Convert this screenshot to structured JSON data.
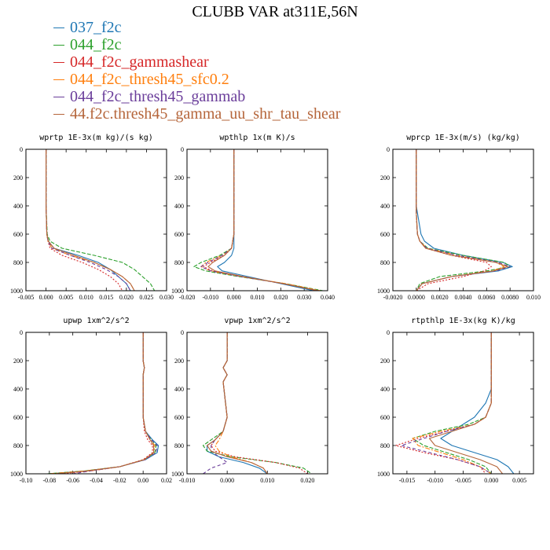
{
  "figure": {
    "title": "CLUBB VAR at311E,56N",
    "legend": [
      {
        "label": "037_f2c",
        "color": "#1f77b4"
      },
      {
        "label": "044_f2c",
        "color": "#2ca02c"
      },
      {
        "label": "044_f2c_gammashear",
        "color": "#d62728"
      },
      {
        "label": "044_f2c_thresh45_sfc0.2",
        "color": "#ff7f0e"
      },
      {
        "label": "044_f2c_thresh45_gammab",
        "color": "#6a3d9a"
      },
      {
        "label": "44.f2c.thresh45_gamma_uu_shr_tau_shear",
        "color": "#b5653a"
      }
    ]
  },
  "chart_data": [
    {
      "type": "line",
      "title": "wprtp  1E-3x(m kg)/(s kg)",
      "xlim": [
        -0.005,
        0.03
      ],
      "xticks": [
        "-0.005",
        "0.000",
        "0.005",
        "0.010",
        "0.015",
        "0.020",
        "0.025",
        "0.030"
      ],
      "ylim": [
        1000,
        0
      ],
      "yticks": [
        "0",
        "200",
        "400",
        "600",
        "800",
        "1000"
      ],
      "y": [
        0,
        200,
        400,
        600,
        650,
        700,
        750,
        800,
        850,
        900,
        950,
        1000
      ],
      "series": [
        {
          "name": "037_f2c",
          "x": [
            0,
            0,
            0,
            0.0002,
            0.0006,
            0.002,
            0.008,
            0.013,
            0.016,
            0.018,
            0.02,
            0.021
          ]
        },
        {
          "name": "044_f2c",
          "x": [
            0,
            0,
            0,
            0.0003,
            0.001,
            0.004,
            0.012,
            0.019,
            0.022,
            0.024,
            0.026,
            0.027
          ]
        },
        {
          "name": "044_f2c_gammashear",
          "x": [
            0,
            0,
            0,
            0.0002,
            0.0005,
            0.001,
            0.004,
            0.009,
            0.013,
            0.016,
            0.018,
            0.019
          ]
        },
        {
          "name": "044_f2c_thresh45_sfc0.2",
          "x": [
            0,
            0,
            0,
            0.0002,
            0.0005,
            0.0015,
            0.006,
            0.012,
            0.016,
            0.019,
            0.021,
            0.022
          ]
        },
        {
          "name": "044_f2c_thresh45_gammab",
          "x": [
            0,
            0,
            0,
            0.0002,
            0.0005,
            0.0015,
            0.006,
            0.011,
            0.015,
            0.018,
            0.02,
            0.021
          ]
        },
        {
          "name": "44.f2c.thresh45_gamma_uu_shr_tau_shear",
          "x": [
            0,
            0,
            0,
            0.0002,
            0.0006,
            0.002,
            0.007,
            0.012,
            0.016,
            0.019,
            0.021,
            0.022
          ]
        }
      ]
    },
    {
      "type": "line",
      "title": "wpthlp  1x(m K)/s",
      "xlim": [
        -0.02,
        0.04
      ],
      "xticks": [
        "-0.020",
        "-0.010",
        "0.000",
        "0.010",
        "0.020",
        "0.030",
        "0.040"
      ],
      "ylim": [
        1000,
        0
      ],
      "yticks": [
        "0",
        "200",
        "400",
        "600",
        "800",
        "1000"
      ],
      "y": [
        0,
        200,
        400,
        600,
        700,
        750,
        800,
        830,
        860,
        900,
        950,
        1000
      ],
      "series": [
        {
          "name": "037_f2c",
          "x": [
            0,
            0,
            0,
            0,
            0,
            -0.001,
            -0.004,
            -0.007,
            -0.005,
            0.006,
            0.02,
            0.034
          ]
        },
        {
          "name": "044_f2c",
          "x": [
            0,
            0,
            0,
            0,
            -0.001,
            -0.006,
            -0.014,
            -0.017,
            -0.012,
            0.002,
            0.022,
            0.038
          ]
        },
        {
          "name": "044_f2c_gammashear",
          "x": [
            0,
            0,
            0,
            0,
            -0.001,
            -0.004,
            -0.01,
            -0.013,
            -0.009,
            0.004,
            0.021,
            0.036
          ]
        },
        {
          "name": "044_f2c_thresh45_sfc0.2",
          "x": [
            0,
            0,
            0,
            0,
            -0.001,
            -0.005,
            -0.012,
            -0.014,
            -0.01,
            0.003,
            0.022,
            0.037
          ]
        },
        {
          "name": "044_f2c_thresh45_gammab",
          "x": [
            0,
            0,
            0,
            0,
            -0.001,
            -0.005,
            -0.011,
            -0.014,
            -0.01,
            0.003,
            0.021,
            0.036
          ]
        },
        {
          "name": "44.f2c.thresh45_gamma_uu_shr_tau_shear",
          "x": [
            0,
            0,
            0,
            0,
            -0.001,
            -0.004,
            -0.009,
            -0.011,
            -0.008,
            0.004,
            0.021,
            0.036
          ]
        }
      ]
    },
    {
      "type": "line",
      "title": "wprcp  1E-3x(m/s) (kg/kg)",
      "xlim": [
        -0.002,
        0.01
      ],
      "xticks": [
        "-0.0020",
        "0.0000",
        "0.0020",
        "0.0040",
        "0.0060",
        "0.0080",
        "0.010"
      ],
      "ylim": [
        1000,
        0
      ],
      "yticks": [
        "0",
        "200",
        "400",
        "600",
        "800",
        "1000"
      ],
      "y": [
        0,
        200,
        400,
        450,
        600,
        650,
        700,
        750,
        800,
        830,
        860,
        900,
        950,
        1000
      ],
      "series": [
        {
          "name": "037_f2c",
          "x": [
            0,
            0,
            0,
            0.0001,
            0.0004,
            0.0007,
            0.0015,
            0.004,
            0.0074,
            0.0082,
            0.007,
            0.003,
            0.0005,
            0
          ]
        },
        {
          "name": "044_f2c",
          "x": [
            0,
            0,
            0,
            0,
            0.0001,
            0.0003,
            0.001,
            0.004,
            0.0075,
            0.008,
            0.006,
            0.002,
            0.0003,
            0
          ]
        },
        {
          "name": "044_f2c_gammashear",
          "x": [
            0,
            0,
            0,
            0,
            0.0001,
            0.0003,
            0.0008,
            0.003,
            0.006,
            0.0064,
            0.0058,
            0.004,
            0.001,
            0
          ]
        },
        {
          "name": "044_f2c_thresh45_sfc0.2",
          "x": [
            0,
            0,
            0,
            0,
            0.0001,
            0.0003,
            0.0009,
            0.0035,
            0.0068,
            0.0075,
            0.0065,
            0.003,
            0.0005,
            0
          ]
        },
        {
          "name": "044_f2c_thresh45_gammab",
          "x": [
            0,
            0,
            0,
            0,
            0.0001,
            0.0003,
            0.0009,
            0.0035,
            0.007,
            0.008,
            0.0068,
            0.003,
            0.0005,
            0
          ]
        },
        {
          "name": "44.f2c.thresh45_gamma_uu_shr_tau_shear",
          "x": [
            0,
            0,
            0,
            0,
            0.0001,
            0.0003,
            0.0008,
            0.003,
            0.0068,
            0.0078,
            0.0066,
            0.003,
            0.0005,
            0
          ]
        }
      ]
    },
    {
      "type": "line",
      "title": "upwp  1xm^2/s^2",
      "xlim": [
        -0.1,
        0.02
      ],
      "xticks": [
        "-0.10",
        "-0.08",
        "-0.06",
        "-0.04",
        "-0.02",
        "0.00",
        "0.02"
      ],
      "ylim": [
        1000,
        0
      ],
      "yticks": [
        "0",
        "200",
        "400",
        "600",
        "800",
        "1000"
      ],
      "y": [
        0,
        200,
        250,
        300,
        600,
        700,
        760,
        800,
        850,
        900,
        950,
        980,
        1000
      ],
      "series": [
        {
          "name": "037_f2c",
          "x": [
            0,
            0,
            0.001,
            0,
            0,
            0.002,
            0.008,
            0.013,
            0.012,
            0.002,
            -0.02,
            -0.05,
            -0.08
          ]
        },
        {
          "name": "044_f2c",
          "x": [
            0,
            0,
            0.001,
            0,
            0,
            0.002,
            0.007,
            0.011,
            0.01,
            0.001,
            -0.02,
            -0.05,
            -0.082
          ]
        },
        {
          "name": "044_f2c_gammashear",
          "x": [
            0,
            0,
            0.001,
            0,
            0,
            0.001,
            0.004,
            0.008,
            0.008,
            0,
            -0.02,
            -0.045,
            -0.07
          ]
        },
        {
          "name": "044_f2c_thresh45_sfc0.2",
          "x": [
            0,
            0,
            0.001,
            0,
            0,
            0.002,
            0.006,
            0.01,
            0.009,
            0.001,
            -0.02,
            -0.05,
            -0.08
          ]
        },
        {
          "name": "044_f2c_thresh45_gammab",
          "x": [
            0,
            0,
            0.001,
            0,
            0,
            0.002,
            0.007,
            0.012,
            0.011,
            0.002,
            -0.02,
            -0.045,
            -0.06
          ]
        },
        {
          "name": "44.f2c.thresh45_gamma_uu_shr_tau_shear",
          "x": [
            0,
            0,
            0.001,
            0,
            0,
            0.002,
            0.006,
            0.009,
            0.009,
            0.001,
            -0.02,
            -0.048,
            -0.075
          ]
        }
      ]
    },
    {
      "type": "line",
      "title": "vpwp  1xm^2/s^2",
      "xlim": [
        -0.01,
        0.025
      ],
      "xticks": [
        "-0.010",
        "0.000",
        "0.010",
        "0.020"
      ],
      "ylim": [
        1000,
        0
      ],
      "yticks": [
        "0",
        "200",
        "400",
        "600",
        "800",
        "1000"
      ],
      "y": [
        0,
        200,
        250,
        300,
        350,
        600,
        700,
        760,
        800,
        840,
        880,
        920,
        960,
        1000
      ],
      "series": [
        {
          "name": "037_f2c",
          "x": [
            0,
            0,
            -0.001,
            0,
            -0.001,
            0,
            -0.001,
            -0.003,
            -0.005,
            -0.005,
            -0.002,
            0.004,
            0.008,
            0.01
          ]
        },
        {
          "name": "044_f2c",
          "x": [
            0,
            0,
            -0.001,
            0,
            -0.001,
            0,
            -0.001,
            -0.004,
            -0.006,
            -0.005,
            0.001,
            0.012,
            0.019,
            0.021
          ]
        },
        {
          "name": "044_f2c_gammashear",
          "x": [
            0,
            0,
            -0.001,
            0,
            -0.001,
            0,
            -0.001,
            -0.003,
            -0.004,
            -0.003,
            0.002,
            0.012,
            0.018,
            0.02
          ]
        },
        {
          "name": "044_f2c_thresh45_sfc0.2",
          "x": [
            0,
            0,
            -0.001,
            0,
            -0.001,
            0,
            -0.001,
            -0.002,
            -0.003,
            -0.002,
            0.001,
            0.006,
            0.009,
            0.01
          ]
        },
        {
          "name": "044_f2c_thresh45_gammab",
          "x": [
            0,
            0,
            -0.001,
            0,
            -0.001,
            0,
            -0.001,
            -0.003,
            -0.004,
            -0.004,
            -0.002,
            0.0,
            -0.004,
            -0.006
          ]
        },
        {
          "name": "44.f2c.thresh45_gamma_uu_shr_tau_shear",
          "x": [
            0,
            0,
            -0.001,
            0,
            -0.001,
            0,
            -0.001,
            -0.003,
            -0.005,
            -0.004,
            0.0,
            0.006,
            0.009,
            0.01
          ]
        }
      ]
    },
    {
      "type": "line",
      "title": "rtpthlp  1E-3x(kg K)/kg",
      "xlim": [
        -0.0175,
        0.0075
      ],
      "xticks": [
        "-0.015",
        "-0.010",
        "-0.005",
        "0.000",
        "0.005"
      ],
      "ylim": [
        1000,
        0
      ],
      "yticks": [
        "0",
        "200",
        "400",
        "600",
        "800",
        "1000"
      ],
      "y": [
        0,
        200,
        400,
        500,
        600,
        650,
        700,
        750,
        800,
        850,
        900,
        950,
        1000
      ],
      "series": [
        {
          "name": "037_f2c",
          "x": [
            0,
            0,
            0,
            -0.001,
            -0.003,
            -0.005,
            -0.007,
            -0.009,
            -0.007,
            -0.003,
            0.001,
            0.003,
            0.004
          ]
        },
        {
          "name": "044_f2c",
          "x": [
            0,
            0,
            0,
            0,
            -0.001,
            -0.004,
            -0.01,
            -0.014,
            -0.012,
            -0.008,
            -0.004,
            -0.001,
            0
          ]
        },
        {
          "name": "044_f2c_gammashear",
          "x": [
            0,
            0,
            0,
            0,
            -0.001,
            -0.003,
            -0.008,
            -0.013,
            -0.017,
            -0.012,
            -0.006,
            -0.002,
            -0.001
          ]
        },
        {
          "name": "044_f2c_thresh45_sfc0.2",
          "x": [
            0,
            0,
            0,
            0,
            -0.001,
            -0.003,
            -0.009,
            -0.014,
            -0.013,
            -0.009,
            -0.005,
            -0.002,
            0
          ]
        },
        {
          "name": "044_f2c_thresh45_gammab",
          "x": [
            0,
            0,
            0,
            0,
            -0.001,
            -0.003,
            -0.008,
            -0.012,
            -0.016,
            -0.011,
            -0.006,
            -0.002,
            0
          ]
        },
        {
          "name": "44.f2c.thresh45_gamma_uu_shr_tau_shear",
          "x": [
            0,
            0,
            0,
            0,
            -0.001,
            -0.003,
            -0.007,
            -0.011,
            -0.01,
            -0.006,
            -0.002,
            0.001,
            0.002
          ]
        }
      ]
    }
  ]
}
